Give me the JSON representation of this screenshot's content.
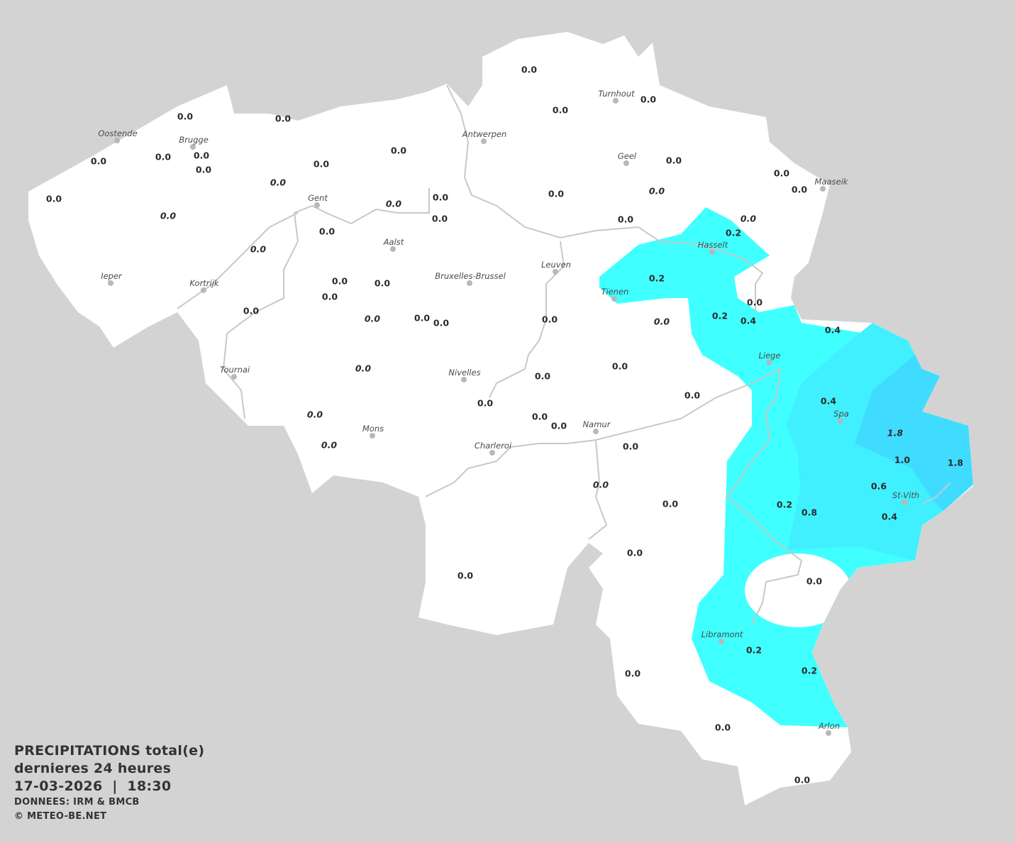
{
  "legend": {
    "title": "PRECIPITATIONS total(e)",
    "period": "dernieres 24 heures",
    "datetime": "17-03-2026  |  18:30",
    "source": "DONNEES: IRM & BMCB",
    "copyright": "© METEO-BE.NET"
  },
  "colors": {
    "background": "#d3d3d3",
    "land": "#ffffff",
    "precip_0_2": "#40ffff",
    "precip_0_4": "#40f0ff",
    "precip_1_0": "#40dcff",
    "river": "#c8c8c8"
  },
  "cities": [
    "Oostende",
    "Brugge",
    "Antwerpen",
    "Turnhout",
    "Geel",
    "Maaseik",
    "Gent",
    "Hasselt",
    "Aalst",
    "Leuven",
    "Bruxelles-Brussel",
    "Ieper",
    "Kortrijk",
    "Tienen",
    "Liege",
    "Tournai",
    "Nivelles",
    "Spa",
    "Namur",
    "Mons",
    "Charleroi",
    "St-Vith",
    "Libramont",
    "Arlon"
  ],
  "readings": [
    {
      "v": "0.0"
    },
    {
      "v": "0.0"
    },
    {
      "v": "0.0"
    },
    {
      "v": "0.0"
    },
    {
      "v": "0.0"
    },
    {
      "v": "0.0"
    },
    {
      "v": "0.0"
    },
    {
      "v": "0.0"
    },
    {
      "v": "0.0"
    },
    {
      "v": "0.0"
    },
    {
      "v": "0.0"
    },
    {
      "v": "0.0"
    },
    {
      "v": "0.0"
    },
    {
      "v": "0.0"
    },
    {
      "v": "0.0",
      "italic": true
    },
    {
      "v": "0.0"
    },
    {
      "v": "0.0",
      "italic": true
    },
    {
      "v": "0.0"
    },
    {
      "v": "0.0"
    },
    {
      "v": "0.0"
    },
    {
      "v": "0.0",
      "italic": true
    },
    {
      "v": "0.0",
      "italic": true
    },
    {
      "v": "0.0"
    },
    {
      "v": "0.0",
      "italic": true
    },
    {
      "v": "0.2"
    },
    {
      "v": "0.0"
    },
    {
      "v": "0.0",
      "italic": true
    },
    {
      "v": "0.2"
    },
    {
      "v": "0.0"
    },
    {
      "v": "0.0"
    },
    {
      "v": "0.0"
    },
    {
      "v": "0.0"
    },
    {
      "v": "0.0"
    },
    {
      "v": "0.2"
    },
    {
      "v": "0.4"
    },
    {
      "v": "0.0",
      "italic": true
    },
    {
      "v": "0.0"
    },
    {
      "v": "0.0"
    },
    {
      "v": "0.0"
    },
    {
      "v": "0.0",
      "italic": true
    },
    {
      "v": "0.4"
    },
    {
      "v": "0.0",
      "italic": true
    },
    {
      "v": "0.0"
    },
    {
      "v": "0.0"
    },
    {
      "v": "0.0"
    },
    {
      "v": "0.0"
    },
    {
      "v": "0.4"
    },
    {
      "v": "0.0"
    },
    {
      "v": "0.0"
    },
    {
      "v": "0.0",
      "italic": true
    },
    {
      "v": "0.0",
      "italic": true
    },
    {
      "v": "0.0"
    },
    {
      "v": "1.8",
      "italic": true
    },
    {
      "v": "1.0"
    },
    {
      "v": "1.8"
    },
    {
      "v": "0.6"
    },
    {
      "v": "0.0",
      "italic": true
    },
    {
      "v": "0.0"
    },
    {
      "v": "0.2"
    },
    {
      "v": "0.8"
    },
    {
      "v": "0.4"
    },
    {
      "v": "0.0"
    },
    {
      "v": "0.0"
    },
    {
      "v": "0.0"
    },
    {
      "v": "0.2"
    },
    {
      "v": "0.2"
    },
    {
      "v": "0.0"
    },
    {
      "v": "0.0"
    },
    {
      "v": "0.0"
    }
  ]
}
